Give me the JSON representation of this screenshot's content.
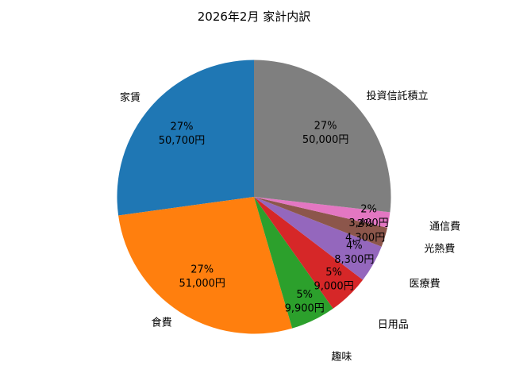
{
  "chart_data": {
    "type": "pie",
    "title": "2026年2月 家計内訳",
    "start_angle_deg": 90,
    "direction": "counterclockwise",
    "legend": "none",
    "background_color": "#ffffff",
    "label_format": "percent_and_amount",
    "slices": [
      {
        "label": "家賃",
        "value": 50700,
        "percent_label": "27%",
        "amount_label": "50,700円",
        "color": "#1f77b4"
      },
      {
        "label": "食費",
        "value": 51000,
        "percent_label": "27%",
        "amount_label": "51,000円",
        "color": "#ff7f0e"
      },
      {
        "label": "趣味",
        "value": 9900,
        "percent_label": "5%",
        "amount_label": "9,900円",
        "color": "#2ca02c"
      },
      {
        "label": "日用品",
        "value": 9000,
        "percent_label": "5%",
        "amount_label": "9,000円",
        "color": "#d62728"
      },
      {
        "label": "医療費",
        "value": 8300,
        "percent_label": "4%",
        "amount_label": "8,300円",
        "color": "#9467bd"
      },
      {
        "label": "光熱費",
        "value": 4300,
        "percent_label": "2%",
        "amount_label": "4,300円",
        "color": "#8c564b"
      },
      {
        "label": "通信費",
        "value": 3400,
        "percent_label": "2%",
        "amount_label": "3,400円",
        "color": "#e377c2"
      },
      {
        "label": "投資信託積立",
        "value": 50000,
        "percent_label": "27%",
        "amount_label": "50,000円",
        "color": "#7f7f7f"
      }
    ]
  }
}
